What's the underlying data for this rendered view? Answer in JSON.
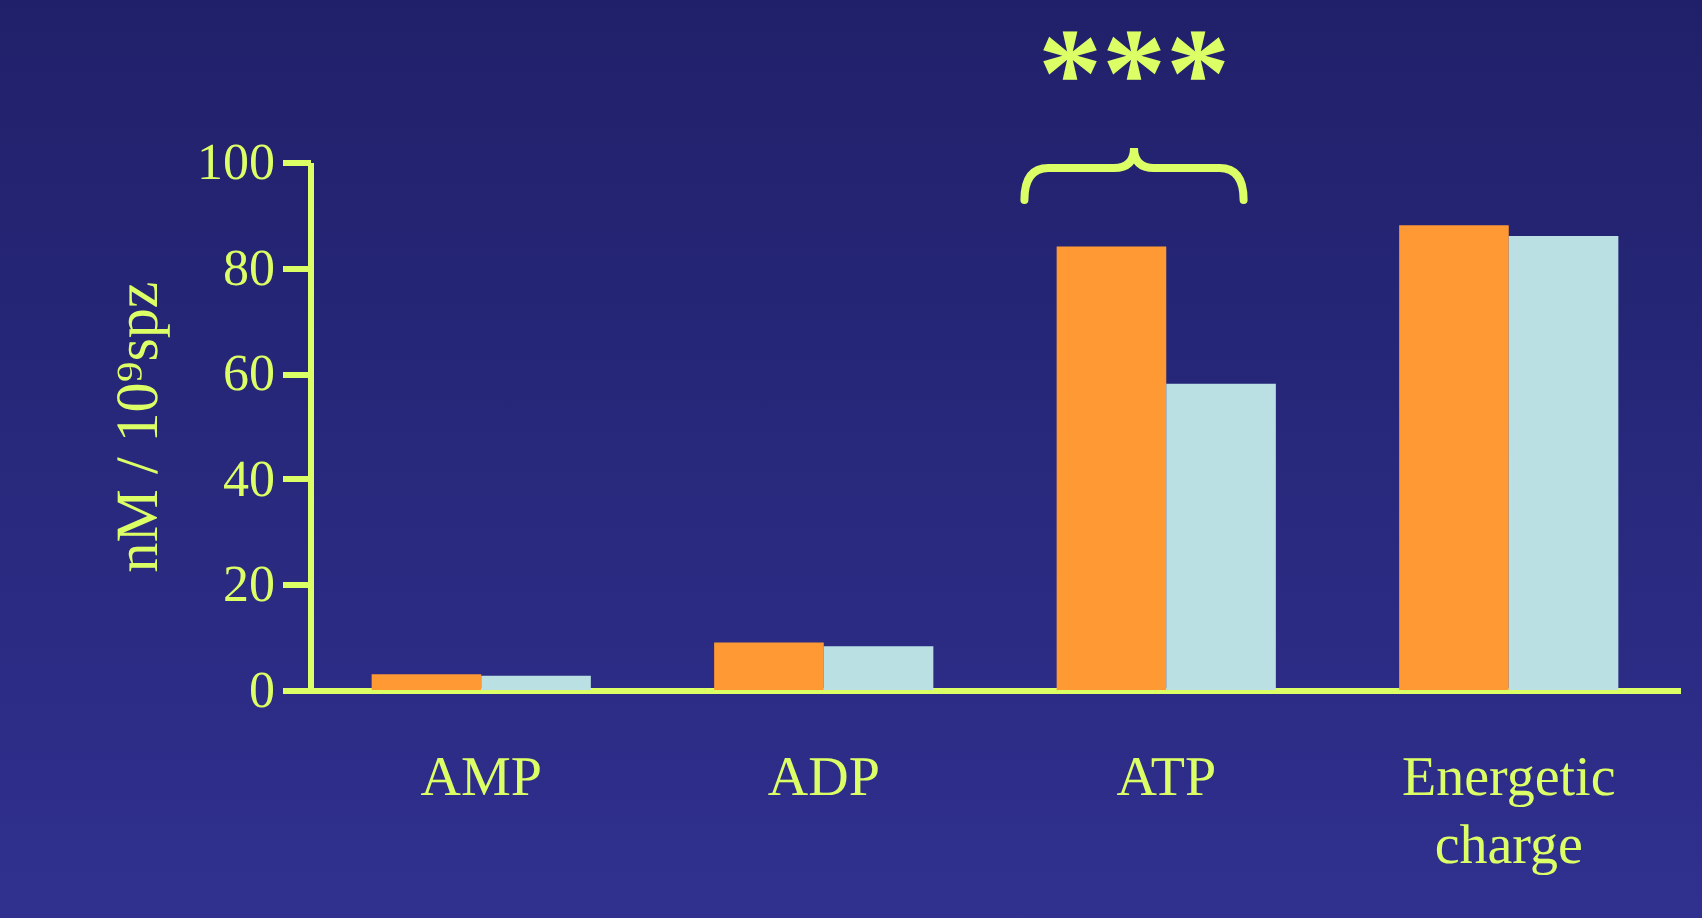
{
  "chart_data": {
    "type": "bar",
    "ylabel": "nM / 10⁹spz",
    "categories": [
      "AMP",
      "ADP",
      "ATP",
      "Energetic charge"
    ],
    "series": [
      {
        "color": "#ff9933",
        "values": [
          3,
          9,
          84,
          88
        ]
      },
      {
        "color": "#bae0e3",
        "values": [
          2.7,
          8.3,
          58,
          86
        ]
      }
    ],
    "ylim": [
      0,
      100
    ],
    "yticks": [
      0,
      20,
      40,
      60,
      80,
      100
    ],
    "annotations": [
      "***"
    ]
  }
}
